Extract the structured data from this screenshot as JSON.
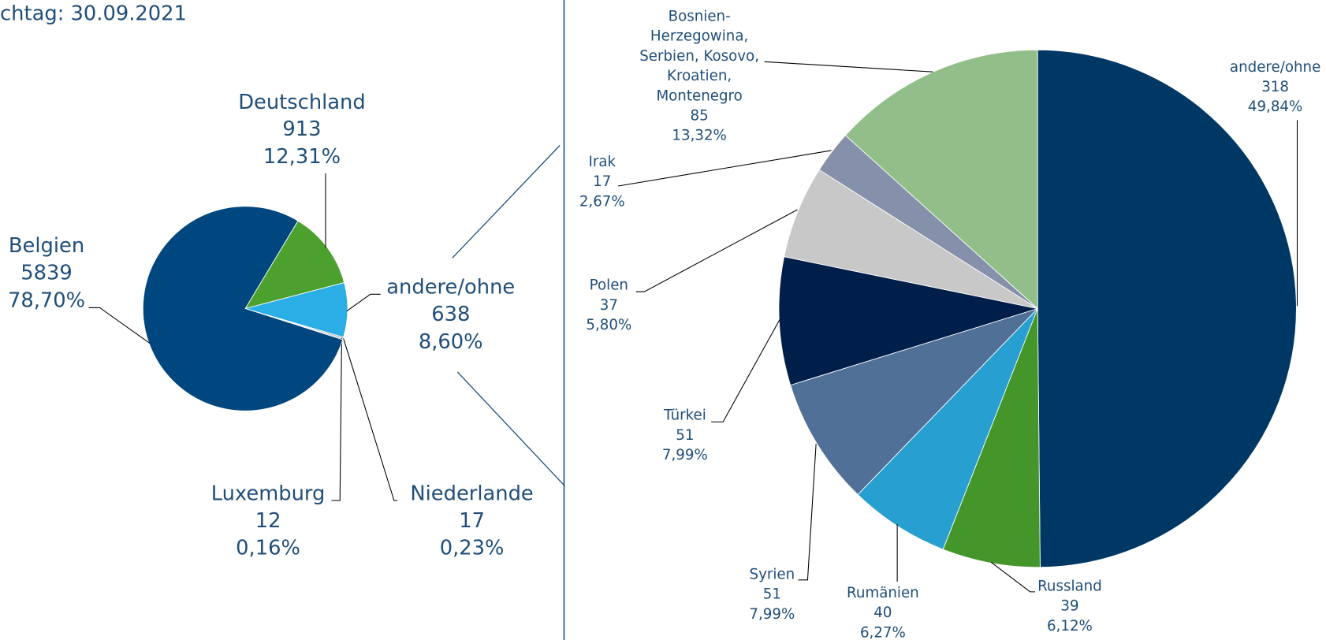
{
  "chart_data": [
    {
      "type": "pie",
      "title": "chtag: 30.09.2021",
      "categories": [
        "Deutschland",
        "andere/ohne",
        "Niederlande",
        "Luxemburg",
        "Belgien"
      ],
      "values": [
        913,
        638,
        17,
        12,
        5839
      ],
      "percentages": [
        12.31,
        8.6,
        0.23,
        0.16,
        78.7
      ],
      "percentage_labels": [
        "12,31%",
        "8,60%",
        "0,23%",
        "0,16%",
        "78,70%"
      ],
      "colors": [
        "#4ca12e",
        "#2baee6",
        "#a6a6a6",
        "#7f7f7f",
        "#00467f"
      ]
    },
    {
      "type": "pie",
      "categories": [
        "andere/ohne",
        "Russland",
        "Rumänien",
        "Syrien",
        "Türkei",
        "Polen",
        "Irak",
        "Bosnien-\nHerzegowina,\nSerbien, Kosovo,\nKroatien,\nMontenegro"
      ],
      "values": [
        318,
        39,
        40,
        51,
        51,
        37,
        17,
        85
      ],
      "percentages": [
        49.84,
        6.12,
        6.27,
        7.99,
        7.99,
        5.8,
        2.67,
        13.32
      ],
      "percentage_labels": [
        "49,84%",
        "6,12%",
        "6,27%",
        "7,99%",
        "7,99%",
        "5,80%",
        "2,67%",
        "13,32%"
      ],
      "colors": [
        "#003865",
        "#44962a",
        "#279fd0",
        "#517097",
        "#001e4a",
        "#c8c8c8",
        "#8590aa",
        "#92bf89"
      ]
    }
  ]
}
